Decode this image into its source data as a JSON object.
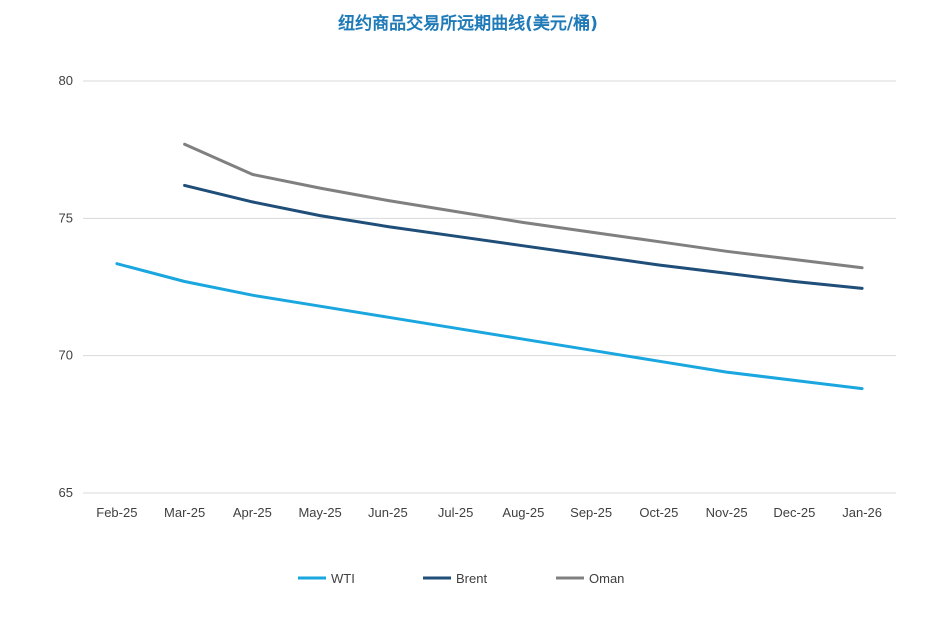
{
  "chart_data": {
    "type": "line",
    "title": "纽约商品交易所远期曲线(美元/桶)",
    "xlabel": "",
    "ylabel": "",
    "categories": [
      "Feb-25",
      "Mar-25",
      "Apr-25",
      "May-25",
      "Jun-25",
      "Jul-25",
      "Aug-25",
      "Sep-25",
      "Oct-25",
      "Nov-25",
      "Dec-25",
      "Jan-26"
    ],
    "yticks": [
      65,
      70,
      75,
      80
    ],
    "ylim": [
      65,
      80
    ],
    "grid": true,
    "legend_position": "bottom",
    "series": [
      {
        "name": "WTI",
        "color": "#1aa6df",
        "values": [
          73.35,
          72.7,
          72.2,
          71.8,
          71.4,
          71.0,
          70.6,
          70.2,
          69.8,
          69.4,
          69.1,
          68.8
        ]
      },
      {
        "name": "Brent",
        "color": "#1f4e79",
        "values": [
          null,
          76.2,
          75.6,
          75.1,
          74.7,
          74.35,
          74.0,
          73.65,
          73.3,
          73.0,
          72.7,
          72.45
        ]
      },
      {
        "name": "Oman",
        "color": "#808080",
        "values": [
          null,
          77.7,
          76.6,
          76.1,
          75.65,
          75.25,
          74.85,
          74.5,
          74.15,
          73.8,
          73.5,
          73.2
        ]
      }
    ]
  }
}
